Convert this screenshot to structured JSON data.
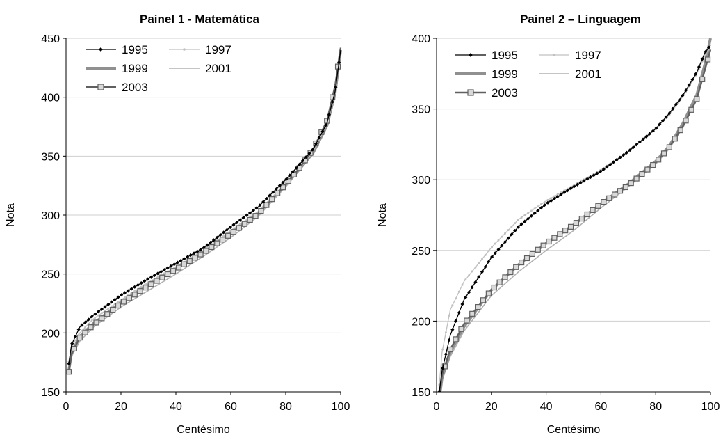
{
  "chart_data": [
    {
      "type": "line",
      "title": "Painel 1 - Matemática",
      "xlabel": "Centésimo",
      "ylabel": "Nota",
      "xlim": [
        0,
        100
      ],
      "ylim": [
        150,
        450
      ],
      "xticks": [
        "0",
        "20",
        "40",
        "60",
        "80",
        "100"
      ],
      "yticks": [
        "150",
        "200",
        "250",
        "300",
        "350",
        "400",
        "450"
      ],
      "grid": "horizontal",
      "legend": "top-left",
      "x": [
        1,
        2,
        5,
        10,
        20,
        30,
        40,
        50,
        60,
        70,
        80,
        85,
        90,
        95,
        98,
        100
      ],
      "series": [
        {
          "name": "1995",
          "color": "#000000",
          "marker": "diamond",
          "values": [
            174,
            190,
            205,
            215,
            232,
            246,
            259,
            272,
            290,
            307,
            330,
            343,
            356,
            378,
            405,
            440
          ]
        },
        {
          "name": "1997",
          "color": "#c0c0c0",
          "marker": "dot",
          "values": [
            176,
            188,
            200,
            212,
            228,
            243,
            256,
            270,
            287,
            303,
            327,
            340,
            354,
            377,
            404,
            440
          ]
        },
        {
          "name": "1999",
          "color": "#909090",
          "marker": "none",
          "values": [
            168,
            183,
            197,
            208,
            226,
            241,
            255,
            269,
            285,
            302,
            326,
            339,
            353,
            376,
            404,
            440
          ]
        },
        {
          "name": "2001",
          "color": "#b0b0b0",
          "marker": "none",
          "values": [
            165,
            180,
            193,
            205,
            222,
            236,
            250,
            265,
            281,
            299,
            324,
            338,
            352,
            375,
            403,
            440
          ]
        },
        {
          "name": "2003",
          "color": "#606060",
          "marker": "square",
          "values": [
            167,
            182,
            196,
            207,
            225,
            240,
            254,
            268,
            284,
            301,
            326,
            340,
            356,
            380,
            410,
            442
          ]
        }
      ]
    },
    {
      "type": "line",
      "title": "Painel 2 – Linguagem",
      "xlabel": "Centésimo",
      "ylabel": "Nota",
      "xlim": [
        0,
        100
      ],
      "ylim": [
        150,
        400
      ],
      "xticks": [
        "0",
        "20",
        "40",
        "60",
        "80",
        "100"
      ],
      "yticks": [
        "150",
        "200",
        "250",
        "300",
        "350",
        "400"
      ],
      "grid": "horizontal",
      "legend": "top-left",
      "x": [
        1,
        2,
        5,
        10,
        20,
        30,
        40,
        50,
        60,
        70,
        80,
        85,
        90,
        95,
        98,
        100
      ],
      "series": [
        {
          "name": "1995",
          "color": "#000000",
          "marker": "diamond",
          "values": [
            150,
            165,
            190,
            215,
            245,
            267,
            283,
            295,
            306,
            320,
            336,
            347,
            360,
            376,
            390,
            395
          ]
        },
        {
          "name": "1997",
          "color": "#c0c0c0",
          "marker": "dot",
          "values": [
            155,
            178,
            208,
            228,
            252,
            272,
            285,
            296,
            307,
            320,
            336,
            346,
            359,
            375,
            388,
            394
          ]
        },
        {
          "name": "1999",
          "color": "#909090",
          "marker": "none",
          "values": [
            145,
            160,
            178,
            196,
            222,
            240,
            255,
            268,
            283,
            297,
            313,
            324,
            340,
            360,
            382,
            400
          ]
        },
        {
          "name": "2001",
          "color": "#b0b0b0",
          "marker": "none",
          "values": [
            143,
            158,
            175,
            193,
            218,
            235,
            250,
            264,
            280,
            295,
            311,
            322,
            337,
            357,
            378,
            398
          ]
        },
        {
          "name": "2003",
          "color": "#606060",
          "marker": "square",
          "values": [
            147,
            162,
            180,
            198,
            222,
            240,
            255,
            268,
            283,
            296,
            312,
            323,
            338,
            357,
            378,
            392
          ]
        }
      ]
    }
  ]
}
